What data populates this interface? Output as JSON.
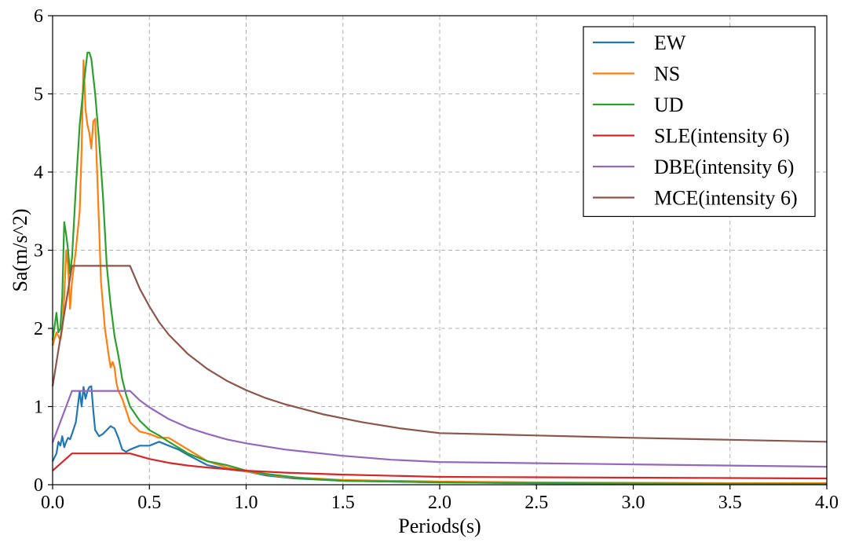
{
  "chart_data": {
    "type": "line",
    "xlabel": "Periods(s)",
    "ylabel": "Sa(m/s^2)",
    "xlim": [
      0,
      4.0
    ],
    "ylim": [
      0,
      6
    ],
    "grid": true,
    "legend_position": "top-right",
    "x_ticks": [
      "0.0",
      "0.5",
      "1.0",
      "1.5",
      "2.0",
      "2.5",
      "3.0",
      "3.5",
      "4.0"
    ],
    "y_ticks": [
      "0",
      "1",
      "2",
      "3",
      "4",
      "5",
      "6"
    ],
    "series": [
      {
        "name": "EW",
        "color": "#1f77b4",
        "x": [
          0,
          0.01,
          0.02,
          0.03,
          0.04,
          0.05,
          0.06,
          0.07,
          0.08,
          0.09,
          0.1,
          0.12,
          0.14,
          0.15,
          0.16,
          0.17,
          0.18,
          0.19,
          0.2,
          0.21,
          0.22,
          0.24,
          0.26,
          0.28,
          0.3,
          0.32,
          0.34,
          0.36,
          0.38,
          0.4,
          0.45,
          0.5,
          0.55,
          0.6,
          0.65,
          0.7,
          0.8,
          0.9,
          1.0,
          1.1,
          1.25,
          1.5,
          2.0,
          2.5,
          3.0,
          3.5,
          4.0
        ],
        "y": [
          0.3,
          0.35,
          0.4,
          0.55,
          0.5,
          0.62,
          0.48,
          0.55,
          0.6,
          0.58,
          0.65,
          0.8,
          1.2,
          1.0,
          1.25,
          1.1,
          1.2,
          1.25,
          1.26,
          0.95,
          0.7,
          0.62,
          0.65,
          0.7,
          0.75,
          0.72,
          0.6,
          0.45,
          0.42,
          0.45,
          0.5,
          0.5,
          0.55,
          0.5,
          0.45,
          0.38,
          0.25,
          0.2,
          0.17,
          0.12,
          0.08,
          0.05,
          0.03,
          0.02,
          0.015,
          0.012,
          0.01
        ]
      },
      {
        "name": "NS",
        "color": "#ff7f0e",
        "x": [
          0,
          0.02,
          0.03,
          0.04,
          0.05,
          0.06,
          0.07,
          0.08,
          0.09,
          0.1,
          0.12,
          0.14,
          0.15,
          0.16,
          0.17,
          0.18,
          0.19,
          0.2,
          0.21,
          0.22,
          0.23,
          0.24,
          0.25,
          0.27,
          0.29,
          0.3,
          0.31,
          0.32,
          0.33,
          0.34,
          0.36,
          0.38,
          0.4,
          0.45,
          0.5,
          0.55,
          0.6,
          0.7,
          0.8,
          0.9,
          1.0,
          1.2,
          1.5,
          2.0,
          2.5,
          3.0,
          3.5,
          4.0
        ],
        "y": [
          1.78,
          1.95,
          1.9,
          1.85,
          2.0,
          2.4,
          3.0,
          2.8,
          2.25,
          2.6,
          3.0,
          3.5,
          4.3,
          5.43,
          4.8,
          4.6,
          4.5,
          4.3,
          4.65,
          4.68,
          4.0,
          3.3,
          2.6,
          2.0,
          1.65,
          1.5,
          1.57,
          1.5,
          1.3,
          1.2,
          1.1,
          0.95,
          0.8,
          0.68,
          0.65,
          0.6,
          0.6,
          0.45,
          0.3,
          0.22,
          0.17,
          0.1,
          0.06,
          0.04,
          0.03,
          0.025,
          0.02,
          0.02
        ]
      },
      {
        "name": "UD",
        "color": "#2ca02c",
        "x": [
          0,
          0.02,
          0.03,
          0.04,
          0.05,
          0.06,
          0.07,
          0.08,
          0.09,
          0.1,
          0.12,
          0.14,
          0.16,
          0.18,
          0.19,
          0.2,
          0.22,
          0.24,
          0.26,
          0.28,
          0.3,
          0.32,
          0.34,
          0.36,
          0.38,
          0.4,
          0.45,
          0.5,
          0.55,
          0.6,
          0.7,
          0.8,
          0.9,
          1.0,
          1.1,
          1.3,
          1.5,
          2.0,
          2.5,
          3.0,
          3.5,
          4.0
        ],
        "y": [
          1.85,
          2.2,
          1.95,
          2.0,
          2.4,
          3.36,
          3.2,
          3.0,
          2.7,
          2.9,
          3.8,
          4.6,
          5.1,
          5.53,
          5.53,
          5.45,
          5.0,
          4.4,
          3.7,
          2.8,
          2.3,
          1.9,
          1.65,
          1.35,
          1.15,
          1.0,
          0.82,
          0.7,
          0.63,
          0.55,
          0.4,
          0.3,
          0.25,
          0.18,
          0.14,
          0.08,
          0.05,
          0.03,
          0.02,
          0.015,
          0.012,
          0.01
        ]
      },
      {
        "name": "SLE(intensity 6)",
        "color": "#d62728",
        "x": [
          0,
          0.1,
          0.4,
          0.5,
          0.6,
          0.7,
          0.8,
          1.0,
          1.2,
          1.5,
          2.0,
          2.5,
          3.0,
          3.5,
          4.0
        ],
        "y": [
          0.18,
          0.4,
          0.4,
          0.33,
          0.28,
          0.245,
          0.22,
          0.18,
          0.155,
          0.13,
          0.1,
          0.095,
          0.09,
          0.085,
          0.08
        ]
      },
      {
        "name": "DBE(intensity 6)",
        "color": "#9467bd",
        "x": [
          0,
          0.1,
          0.4,
          0.45,
          0.5,
          0.6,
          0.7,
          0.8,
          0.9,
          1.0,
          1.2,
          1.5,
          1.75,
          2.0,
          2.5,
          3.0,
          3.5,
          4.0
        ],
        "y": [
          0.54,
          1.2,
          1.2,
          1.08,
          0.99,
          0.84,
          0.73,
          0.65,
          0.58,
          0.53,
          0.45,
          0.37,
          0.32,
          0.29,
          0.275,
          0.26,
          0.245,
          0.23
        ]
      },
      {
        "name": "MCE(intensity 6)",
        "color": "#8c564b",
        "x": [
          0,
          0.1,
          0.4,
          0.45,
          0.5,
          0.55,
          0.6,
          0.7,
          0.8,
          0.9,
          1.0,
          1.1,
          1.2,
          1.4,
          1.6,
          1.8,
          2.0,
          2.5,
          3.0,
          3.5,
          4.0
        ],
        "y": [
          1.26,
          2.8,
          2.8,
          2.51,
          2.28,
          2.08,
          1.92,
          1.67,
          1.48,
          1.33,
          1.21,
          1.11,
          1.03,
          0.9,
          0.8,
          0.72,
          0.66,
          0.63,
          0.6,
          0.575,
          0.55
        ]
      }
    ]
  }
}
